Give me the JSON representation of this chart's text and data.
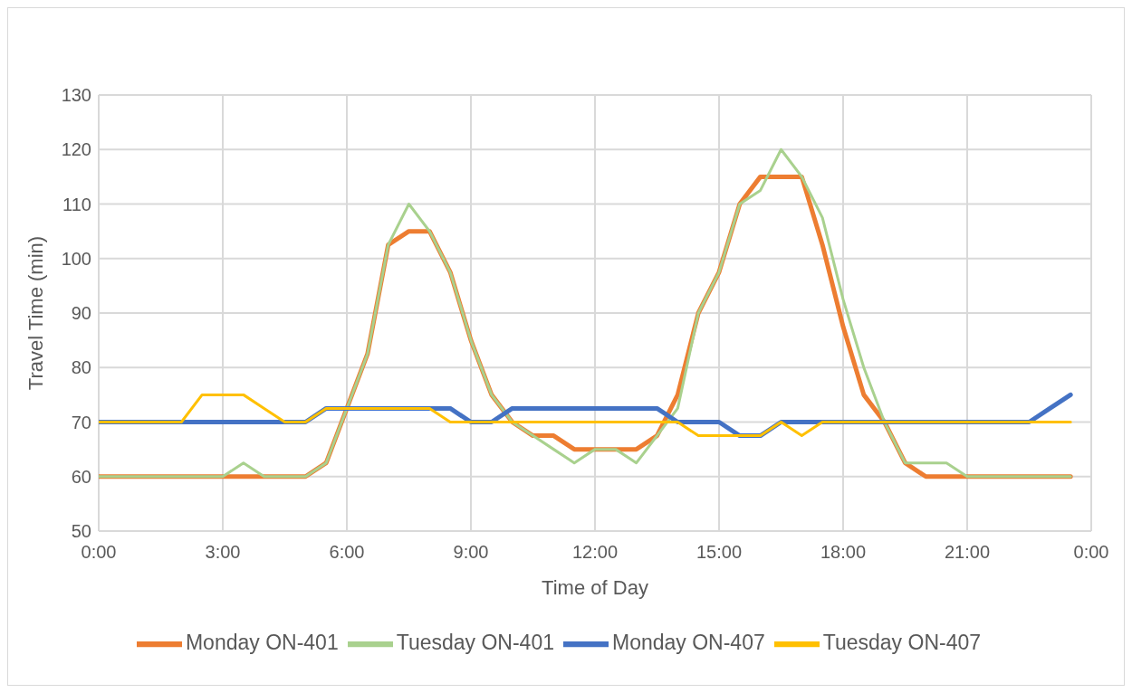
{
  "chart_data": {
    "type": "line",
    "xlabel": "Time of Day",
    "ylabel": "Travel Time (min)",
    "x": [
      0,
      0.5,
      1,
      1.5,
      2,
      2.5,
      3,
      3.5,
      4,
      4.5,
      5,
      5.5,
      6,
      6.5,
      7,
      7.5,
      8,
      8.5,
      9,
      9.5,
      10,
      10.5,
      11,
      11.5,
      12,
      12.5,
      13,
      13.5,
      14,
      14.5,
      15,
      15.5,
      16,
      16.5,
      17,
      17.5,
      18,
      18.5,
      19,
      19.5,
      20,
      20.5,
      21,
      21.5,
      22,
      22.5,
      23,
      23.5
    ],
    "series": [
      {
        "name": "Monday ON-401",
        "color": "#ed7d31",
        "values": [
          60,
          60,
          60,
          60,
          60,
          60,
          60,
          60,
          60,
          60,
          60,
          62.5,
          72.5,
          82.5,
          102.5,
          105,
          105,
          97.5,
          85,
          75,
          70,
          67.5,
          67.5,
          65,
          65,
          65,
          65,
          67.5,
          75,
          90,
          97.5,
          110,
          115,
          115,
          115,
          102.5,
          87.5,
          75,
          70,
          62.5,
          60,
          60,
          60,
          60,
          60,
          60,
          60,
          60
        ]
      },
      {
        "name": "Tuesday ON-401",
        "color": "#a9d18e",
        "values": [
          60,
          60,
          60,
          60,
          60,
          60,
          60,
          62.5,
          60,
          60,
          60,
          62.5,
          72.5,
          82.5,
          102.5,
          110,
          105,
          97.5,
          85,
          75,
          70,
          67.5,
          65,
          62.5,
          65,
          65,
          62.5,
          67.5,
          72.5,
          90,
          97.5,
          110,
          112.5,
          120,
          115,
          107.5,
          92.5,
          80,
          70,
          62.5,
          62.5,
          62.5,
          60,
          60,
          60,
          60,
          60,
          60
        ]
      },
      {
        "name": "Monday ON-407",
        "color": "#4472c4",
        "values": [
          70,
          70,
          70,
          70,
          70,
          70,
          70,
          70,
          70,
          70,
          70,
          72.5,
          72.5,
          72.5,
          72.5,
          72.5,
          72.5,
          72.5,
          70,
          70,
          72.5,
          72.5,
          72.5,
          72.5,
          72.5,
          72.5,
          72.5,
          72.5,
          70,
          70,
          70,
          67.5,
          67.5,
          70,
          70,
          70,
          70,
          70,
          70,
          70,
          70,
          70,
          70,
          70,
          70,
          70,
          72.5,
          75
        ]
      },
      {
        "name": "Tuesday ON-407",
        "color": "#ffc000",
        "values": [
          70,
          70,
          70,
          70,
          70,
          75,
          75,
          75,
          72.5,
          70,
          70,
          72.5,
          72.5,
          72.5,
          72.5,
          72.5,
          72.5,
          70,
          70,
          70,
          70,
          70,
          70,
          70,
          70,
          70,
          70,
          70,
          70,
          67.5,
          67.5,
          67.5,
          67.5,
          70,
          67.5,
          70,
          70,
          70,
          70,
          70,
          70,
          70,
          70,
          70,
          70,
          70,
          70,
          70
        ]
      }
    ],
    "xlim": [
      0,
      24
    ],
    "xticks": [
      {
        "value": 0,
        "label": "0:00"
      },
      {
        "value": 3,
        "label": "3:00"
      },
      {
        "value": 6,
        "label": "6:00"
      },
      {
        "value": 9,
        "label": "9:00"
      },
      {
        "value": 12,
        "label": "12:00"
      },
      {
        "value": 15,
        "label": "15:00"
      },
      {
        "value": 18,
        "label": "18:00"
      },
      {
        "value": 21,
        "label": "21:00"
      },
      {
        "value": 24,
        "label": "0:00"
      }
    ],
    "ylim": [
      50,
      130
    ],
    "yticks": [
      50,
      60,
      70,
      80,
      90,
      100,
      110,
      120,
      130
    ],
    "grid": true,
    "legend": "bottom",
    "marker": "none",
    "line_style": "solid"
  }
}
